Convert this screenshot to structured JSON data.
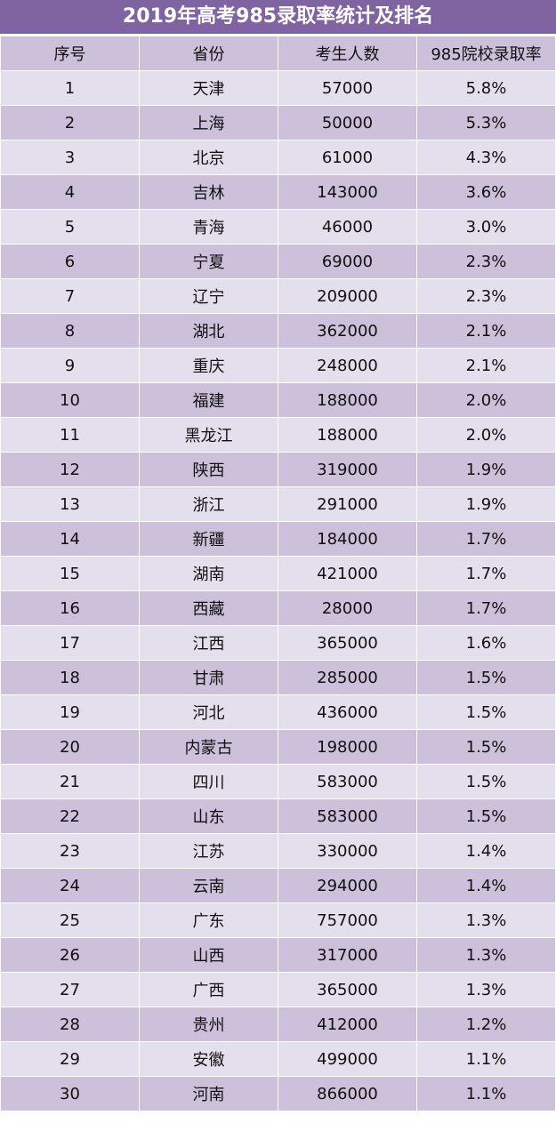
{
  "title": "2019年高考985录取率统计及排名",
  "colors": {
    "title_bg": "#8064a2",
    "row_dark": "#ccc0da",
    "row_light": "#e4dfec"
  },
  "headers": [
    "序号",
    "省份",
    "考生人数",
    "985院校录取率"
  ],
  "rows": [
    [
      "1",
      "天津",
      "57000",
      "5.8%"
    ],
    [
      "2",
      "上海",
      "50000",
      "5.3%"
    ],
    [
      "3",
      "北京",
      "61000",
      "4.3%"
    ],
    [
      "4",
      "吉林",
      "143000",
      "3.6%"
    ],
    [
      "5",
      "青海",
      "46000",
      "3.0%"
    ],
    [
      "6",
      "宁夏",
      "69000",
      "2.3%"
    ],
    [
      "7",
      "辽宁",
      "209000",
      "2.3%"
    ],
    [
      "8",
      "湖北",
      "362000",
      "2.1%"
    ],
    [
      "9",
      "重庆",
      "248000",
      "2.1%"
    ],
    [
      "10",
      "福建",
      "188000",
      "2.0%"
    ],
    [
      "11",
      "黑龙江",
      "188000",
      "2.0%"
    ],
    [
      "12",
      "陕西",
      "319000",
      "1.9%"
    ],
    [
      "13",
      "浙江",
      "291000",
      "1.9%"
    ],
    [
      "14",
      "新疆",
      "184000",
      "1.7%"
    ],
    [
      "15",
      "湖南",
      "421000",
      "1.7%"
    ],
    [
      "16",
      "西藏",
      "28000",
      "1.7%"
    ],
    [
      "17",
      "江西",
      "365000",
      "1.6%"
    ],
    [
      "18",
      "甘肃",
      "285000",
      "1.5%"
    ],
    [
      "19",
      "河北",
      "436000",
      "1.5%"
    ],
    [
      "20",
      "内蒙古",
      "198000",
      "1.5%"
    ],
    [
      "21",
      "四川",
      "583000",
      "1.5%"
    ],
    [
      "22",
      "山东",
      "583000",
      "1.5%"
    ],
    [
      "23",
      "江苏",
      "330000",
      "1.4%"
    ],
    [
      "24",
      "云南",
      "294000",
      "1.4%"
    ],
    [
      "25",
      "广东",
      "757000",
      "1.3%"
    ],
    [
      "26",
      "山西",
      "317000",
      "1.3%"
    ],
    [
      "27",
      "广西",
      "365000",
      "1.3%"
    ],
    [
      "28",
      "贵州",
      "412000",
      "1.2%"
    ],
    [
      "29",
      "安徽",
      "499000",
      "1.1%"
    ],
    [
      "30",
      "河南",
      "866000",
      "1.1%"
    ]
  ]
}
